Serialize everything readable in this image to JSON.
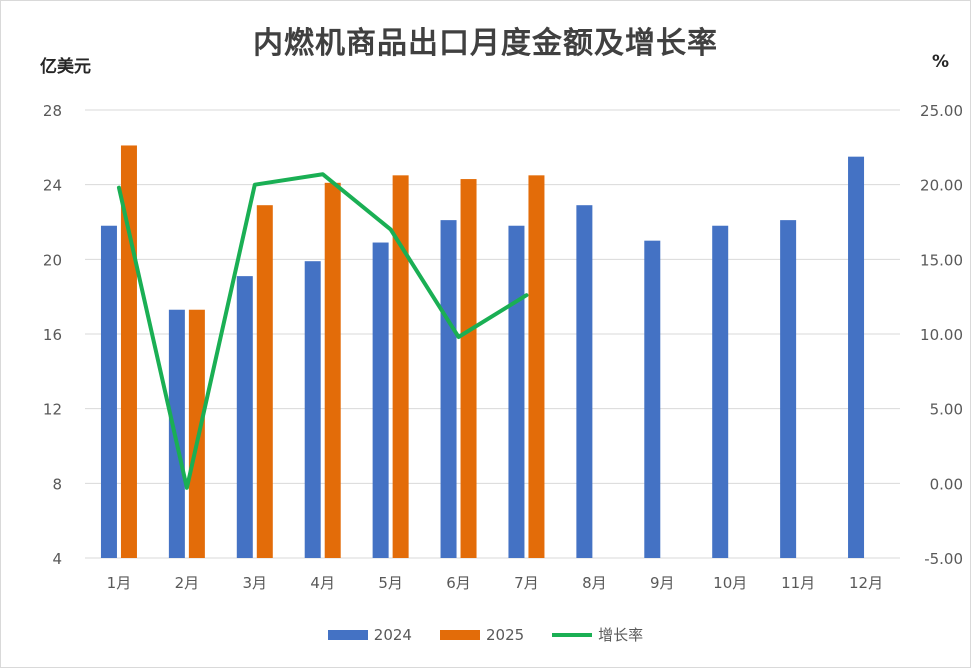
{
  "chart_data": {
    "type": "bar",
    "title": "内燃机商品出口月度金额及增长率",
    "ylabel": "亿美元",
    "y2label": "%",
    "categories": [
      "1月",
      "2月",
      "3月",
      "4月",
      "5月",
      "6月",
      "7月",
      "8月",
      "9月",
      "10月",
      "11月",
      "12月"
    ],
    "ylim": [
      4,
      28
    ],
    "yticks": [
      "28",
      "24",
      "20",
      "16",
      "12",
      "8",
      "4"
    ],
    "y2lim": [
      -5,
      25
    ],
    "y2ticks": [
      "25.00",
      "20.00",
      "15.00",
      "10.00",
      "5.00",
      "0.00",
      "-5.00"
    ],
    "series": [
      {
        "name": "2024",
        "type": "bar",
        "color": "#4472c4",
        "values": [
          21.8,
          17.3,
          19.1,
          19.9,
          20.9,
          22.1,
          21.8,
          22.9,
          21.0,
          21.8,
          22.1,
          25.5
        ]
      },
      {
        "name": "2025",
        "type": "bar",
        "color": "#e36c09",
        "values": [
          26.1,
          17.3,
          22.9,
          24.1,
          24.5,
          24.3,
          24.5,
          null,
          null,
          null,
          null,
          null
        ]
      },
      {
        "name": "增长率",
        "type": "line",
        "axis": "right",
        "color": "#1aaf54",
        "values": [
          19.8,
          -0.3,
          20.0,
          20.7,
          17.0,
          9.8,
          12.6,
          null,
          null,
          null,
          null,
          null
        ]
      }
    ],
    "grid": true,
    "legend": "bottom"
  }
}
